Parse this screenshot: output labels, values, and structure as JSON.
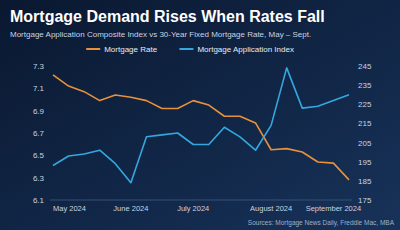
{
  "chart_data": {
    "type": "line",
    "title": "Mortgage Demand Rises When Rates Fall",
    "subtitle": "Mortgage Application Composite Index vs 30-Year Fixed Mortgage Rate, May – Sept.",
    "source": "Sources: Mortgage News Daily, Freddie Mac, MBA",
    "categories": [
      "May 2024",
      null,
      null,
      null,
      null,
      "June 2024",
      null,
      null,
      null,
      "July 2024",
      null,
      null,
      null,
      null,
      "August 2024",
      null,
      null,
      null,
      "September 2024",
      null
    ],
    "ylim": [
      6.1,
      7.3
    ],
    "yticks": [
      6.1,
      6.3,
      6.5,
      6.7,
      6.9,
      7.1,
      7.3
    ],
    "y2lim": [
      175,
      245
    ],
    "y2ticks": [
      175,
      185,
      195,
      205,
      215,
      225,
      235,
      245
    ],
    "grid": false,
    "legend": "top",
    "series": [
      {
        "name": "Mortgage Rate",
        "color": "#e8913a",
        "values": [
          7.22,
          7.12,
          7.07,
          6.99,
          7.04,
          7.02,
          6.99,
          6.92,
          6.92,
          6.99,
          6.95,
          6.85,
          6.85,
          6.79,
          6.55,
          6.56,
          6.53,
          6.44,
          6.43,
          6.28
        ]
      },
      {
        "name": "Mortgage Application Index",
        "color": "#35a7e0",
        "axis": "y2",
        "values": [
          193,
          198,
          199,
          201,
          194,
          184,
          208,
          209,
          210,
          204,
          204,
          213,
          208,
          201,
          214,
          244,
          223,
          224,
          227,
          230
        ]
      }
    ]
  }
}
